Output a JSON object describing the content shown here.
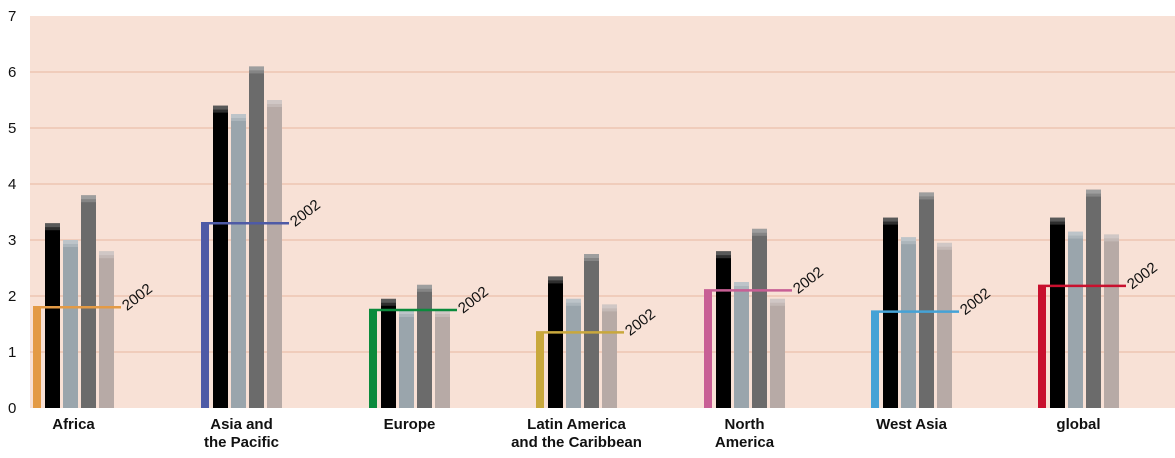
{
  "chart_data": {
    "type": "bar",
    "ylim": [
      0,
      7
    ],
    "yticks": [
      0,
      1,
      2,
      3,
      4,
      5,
      6,
      7
    ],
    "grid": true,
    "categories": [
      [
        "Africa"
      ],
      [
        "Asia and",
        "the Pacific"
      ],
      [
        "Europe"
      ],
      [
        "Latin America",
        "and the Caribbean"
      ],
      [
        "North",
        "America"
      ],
      [
        "West Asia"
      ],
      [
        "global"
      ]
    ],
    "series": [
      {
        "color": "#000000",
        "values": [
          3.3,
          5.4,
          1.95,
          2.35,
          2.8,
          3.4,
          3.4
        ]
      },
      {
        "color": "#9aa5ac",
        "values": [
          3.0,
          5.25,
          1.75,
          1.95,
          2.25,
          3.05,
          3.15
        ]
      },
      {
        "color": "#6b6b6b",
        "values": [
          3.8,
          6.1,
          2.2,
          2.75,
          3.2,
          3.85,
          3.9
        ]
      },
      {
        "color": "#b7aaa6",
        "values": [
          2.8,
          5.5,
          1.75,
          1.85,
          1.95,
          2.95,
          3.1
        ]
      }
    ],
    "markers_2002": [
      {
        "value": 1.8,
        "color": "#e39a45",
        "label": "2002"
      },
      {
        "value": 3.3,
        "color": "#4e5aa6",
        "label": "2002"
      },
      {
        "value": 1.75,
        "color": "#0b8a3c",
        "label": "2002"
      },
      {
        "value": 1.35,
        "color": "#c9a83c",
        "label": "2002"
      },
      {
        "value": 2.1,
        "color": "#c85f95",
        "label": "2002"
      },
      {
        "value": 1.72,
        "color": "#45a2d6",
        "label": "2002"
      },
      {
        "value": 2.18,
        "color": "#c8102e",
        "label": "2002"
      }
    ]
  },
  "colors": {
    "plot_background": "#f8e1d6",
    "gridline": "#e9b7a0"
  }
}
